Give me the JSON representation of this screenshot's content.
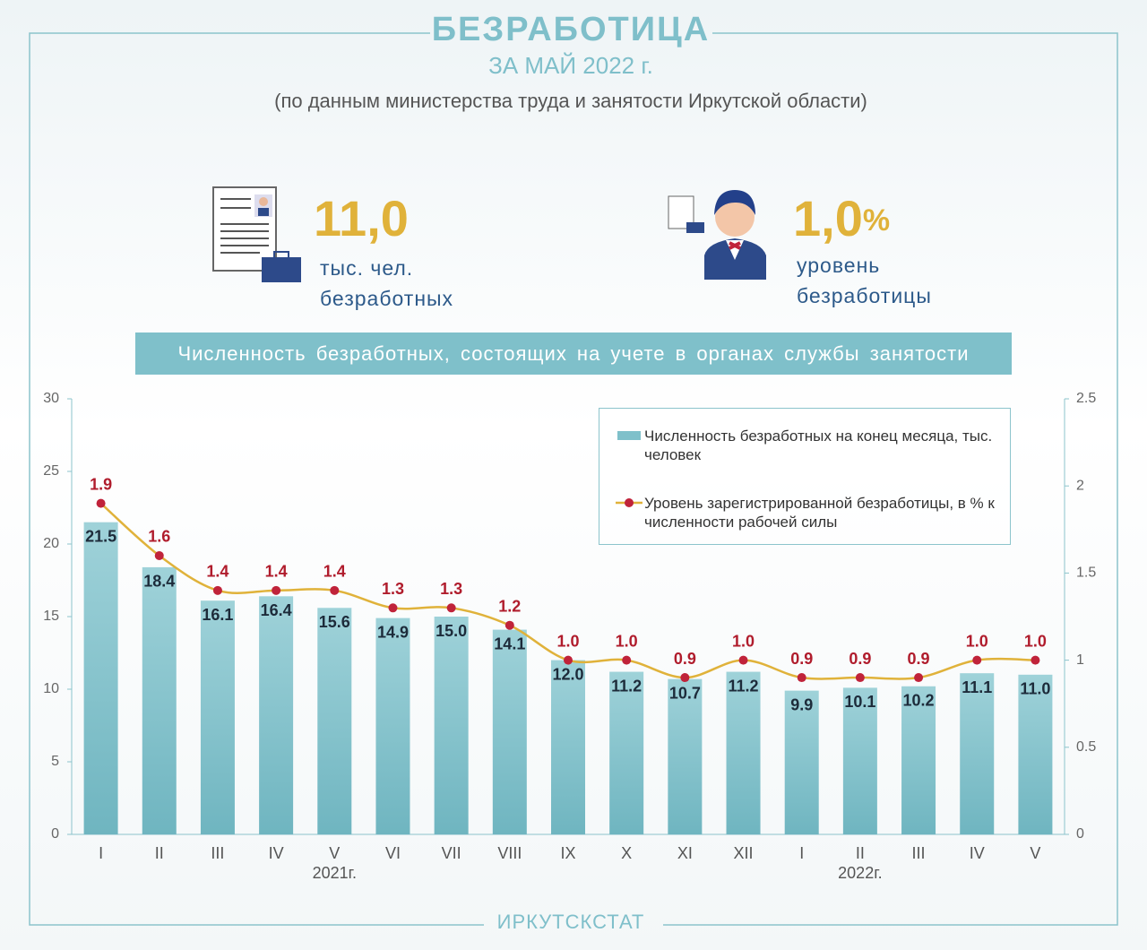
{
  "header": {
    "title": "БЕЗРАБОТИЦА",
    "subtitle": "ЗА МАЙ 2022 г.",
    "source": "(по данным министерства труда и занятости Иркутской области)"
  },
  "stats": [
    {
      "value": "11,0",
      "lines": [
        "тыс. чел.",
        "безработных"
      ]
    },
    {
      "value": "1,0",
      "unit": "%",
      "lines": [
        "уровень",
        "безработицы"
      ]
    }
  ],
  "banner": "Численность безработных, состоящих на учете в органах службы занятости",
  "chart_data": {
    "type": "bar",
    "categories": [
      "I",
      "II",
      "III",
      "IV",
      "V",
      "VI",
      "VII",
      "VIII",
      "IX",
      "X",
      "XI",
      "XII",
      "I",
      "II",
      "III",
      "IV",
      "V"
    ],
    "year_labels": [
      "2021г.",
      "2022г."
    ],
    "series": [
      {
        "name": "Численность безработных на конец месяца, тыс. человек",
        "type": "bar",
        "color": "#7fc0ca",
        "values": [
          21.5,
          18.4,
          16.1,
          16.4,
          15.6,
          14.9,
          15.0,
          14.1,
          12.0,
          11.2,
          10.7,
          11.2,
          9.9,
          10.1,
          10.2,
          11.1,
          11.0
        ],
        "value_labels": [
          "21.5",
          "18.4",
          "16.1",
          "16.4",
          "15.6",
          "14.9",
          "15.0",
          "14.1",
          "12.0",
          "11.2",
          "10.7",
          "11.2",
          "9.9",
          "10.1",
          "10.2",
          "11.1",
          "11.0"
        ]
      },
      {
        "name": "Уровень зарегистрированной безработицы, в % к численности рабочей силы",
        "type": "line",
        "axis": "y2",
        "color": "#e0b23a",
        "marker_color": "#c0233a",
        "values": [
          1.9,
          1.6,
          1.4,
          1.4,
          1.4,
          1.3,
          1.3,
          1.2,
          1.0,
          1.0,
          0.9,
          1.0,
          0.9,
          0.9,
          0.9,
          1.0,
          1.0
        ],
        "value_labels": [
          "1.9",
          "1.6",
          "1.4",
          "1.4",
          "1.4",
          "1.3",
          "1.3",
          "1.2",
          "1.0",
          "1.0",
          "0.9",
          "1.0",
          "0.9",
          "0.9",
          "0.9",
          "1.0",
          "1.0"
        ]
      }
    ],
    "ylim": [
      0,
      30
    ],
    "yticks": [
      0,
      5,
      10,
      15,
      20,
      25,
      30
    ],
    "y2lim": [
      0,
      2.5
    ],
    "y2ticks": [
      0,
      0.5,
      1,
      1.5,
      2,
      2.5
    ],
    "legend": "top-right"
  },
  "footer": "ИРКУТСКСТАТ"
}
